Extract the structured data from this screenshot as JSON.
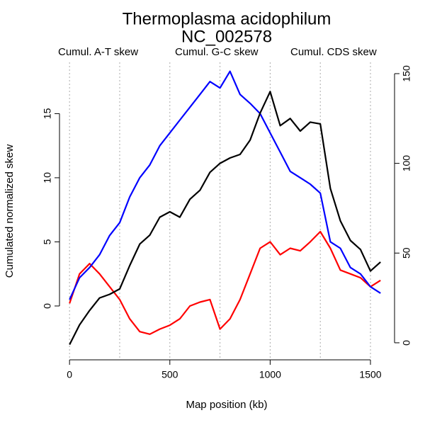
{
  "chart_data": {
    "type": "line",
    "title": "Thermoplasma acidophilum",
    "subtitle": "NC_002578",
    "xlabel": "Map position (kb)",
    "ylabel": "Cumulated normalized skew",
    "x": [
      0,
      50,
      100,
      150,
      200,
      250,
      300,
      350,
      400,
      450,
      500,
      550,
      600,
      650,
      700,
      750,
      800,
      850,
      900,
      950,
      1000,
      1050,
      1100,
      1150,
      1200,
      1250,
      1300,
      1350,
      1400,
      1450,
      1500,
      1550
    ],
    "series": [
      {
        "name": "Cumul. A-T skew",
        "color": "#ff0000",
        "axis": "y",
        "values": [
          0.2,
          2.5,
          3.3,
          2.5,
          1.5,
          0.5,
          -1,
          -2,
          -2.2,
          -1.8,
          -1.5,
          -1,
          0,
          0.3,
          0.5,
          -1.8,
          -1,
          0.5,
          2.5,
          4.5,
          5,
          4,
          4.5,
          4.3,
          5,
          5.8,
          4.5,
          2.8,
          2.5,
          2.2,
          1.5,
          2
        ]
      },
      {
        "name": "Cumul. G-C skew",
        "color": "#0000ff",
        "axis": "y",
        "values": [
          0.5,
          2.2,
          3,
          4,
          5.5,
          6.5,
          8.5,
          10,
          11,
          12.5,
          13.5,
          14.5,
          15.5,
          16.5,
          17.5,
          17,
          18.3,
          16.5,
          15.8,
          15,
          13.5,
          12,
          10.5,
          10,
          9.5,
          8.8,
          5,
          4.5,
          3,
          2.5,
          1.5,
          1
        ]
      },
      {
        "name": "Cumul. CDS skew",
        "color": "#000000",
        "axis": "y2",
        "values": [
          -1,
          10,
          18,
          25,
          27,
          30,
          43,
          55,
          60,
          70,
          73,
          70,
          80,
          85,
          95,
          100,
          103,
          105,
          113,
          128,
          140,
          121,
          125,
          118,
          123,
          122,
          86,
          68,
          57,
          52,
          40,
          45
        ]
      }
    ],
    "xlim": [
      -50,
      1620
    ],
    "ylim": [
      -4.2,
      19
    ],
    "y2lim": [
      -9.5,
      156.3
    ],
    "xticks": [
      0,
      500,
      1000,
      1500
    ],
    "yticks": [
      0,
      5,
      10,
      15
    ],
    "y2ticks": [
      0,
      50,
      100,
      150
    ],
    "xgrid": [
      0,
      250,
      500,
      750,
      1000,
      1250,
      1500
    ]
  }
}
